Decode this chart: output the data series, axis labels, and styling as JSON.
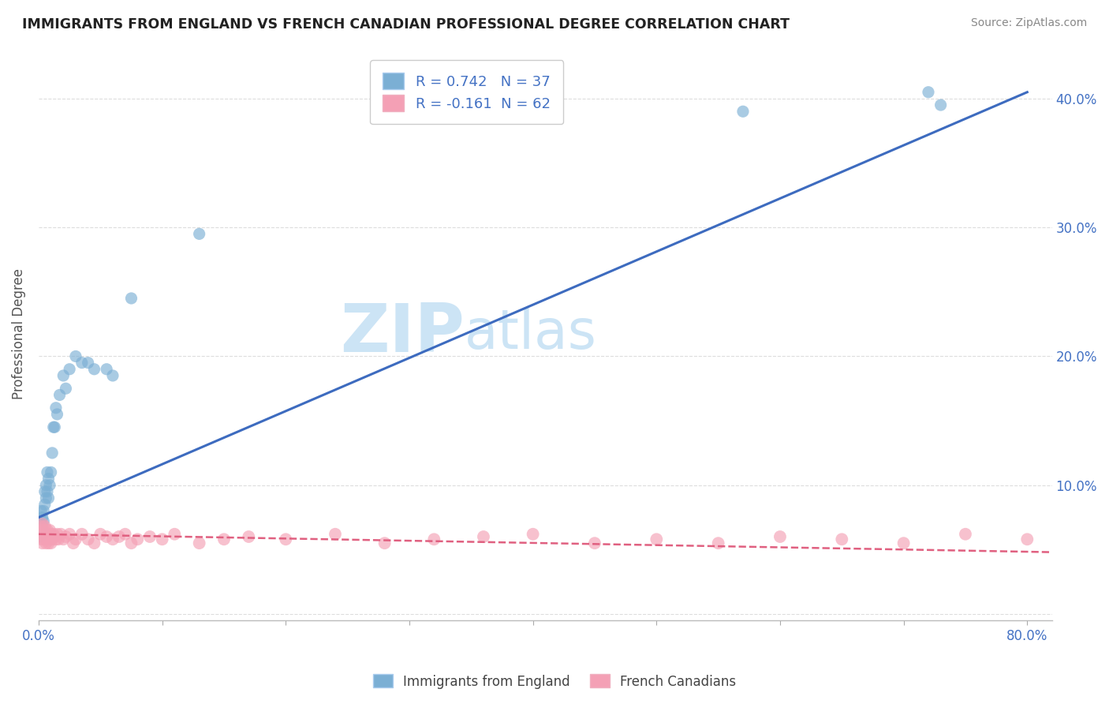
{
  "title": "IMMIGRANTS FROM ENGLAND VS FRENCH CANADIAN PROFESSIONAL DEGREE CORRELATION CHART",
  "source": "Source: ZipAtlas.com",
  "ylabel": "Professional Degree",
  "r_england": 0.742,
  "n_england": 37,
  "r_french": -0.161,
  "n_french": 62,
  "legend_label_england": "Immigrants from England",
  "legend_label_french": "French Canadians",
  "color_england": "#7bafd4",
  "color_french": "#f4a0b5",
  "color_trendline_england": "#3d6bbf",
  "color_trendline_french": "#e06080",
  "watermark_ZIP": "ZIP",
  "watermark_atlas": "atlas",
  "watermark_color": "#cce4f5",
  "england_x": [
    0.001,
    0.002,
    0.002,
    0.003,
    0.003,
    0.004,
    0.004,
    0.005,
    0.005,
    0.006,
    0.006,
    0.007,
    0.007,
    0.008,
    0.008,
    0.009,
    0.01,
    0.011,
    0.012,
    0.013,
    0.014,
    0.015,
    0.017,
    0.02,
    0.022,
    0.025,
    0.03,
    0.035,
    0.04,
    0.045,
    0.055,
    0.06,
    0.075,
    0.13,
    0.57,
    0.72,
    0.73
  ],
  "england_y": [
    0.06,
    0.07,
    0.08,
    0.065,
    0.075,
    0.072,
    0.08,
    0.085,
    0.095,
    0.09,
    0.1,
    0.095,
    0.11,
    0.09,
    0.105,
    0.1,
    0.11,
    0.125,
    0.145,
    0.145,
    0.16,
    0.155,
    0.17,
    0.185,
    0.175,
    0.19,
    0.2,
    0.195,
    0.195,
    0.19,
    0.19,
    0.185,
    0.245,
    0.295,
    0.39,
    0.405,
    0.395
  ],
  "french_x": [
    0.001,
    0.002,
    0.002,
    0.003,
    0.003,
    0.003,
    0.004,
    0.004,
    0.005,
    0.005,
    0.006,
    0.006,
    0.007,
    0.007,
    0.008,
    0.008,
    0.009,
    0.009,
    0.01,
    0.01,
    0.011,
    0.012,
    0.013,
    0.014,
    0.015,
    0.016,
    0.018,
    0.02,
    0.022,
    0.025,
    0.028,
    0.03,
    0.035,
    0.04,
    0.045,
    0.05,
    0.055,
    0.06,
    0.065,
    0.07,
    0.075,
    0.08,
    0.09,
    0.1,
    0.11,
    0.13,
    0.15,
    0.17,
    0.2,
    0.24,
    0.28,
    0.32,
    0.36,
    0.4,
    0.45,
    0.5,
    0.55,
    0.6,
    0.65,
    0.7,
    0.75,
    0.8
  ],
  "french_y": [
    0.062,
    0.058,
    0.068,
    0.055,
    0.065,
    0.07,
    0.058,
    0.065,
    0.06,
    0.068,
    0.055,
    0.062,
    0.058,
    0.065,
    0.055,
    0.06,
    0.058,
    0.065,
    0.055,
    0.062,
    0.058,
    0.062,
    0.06,
    0.058,
    0.062,
    0.058,
    0.062,
    0.058,
    0.06,
    0.062,
    0.055,
    0.058,
    0.062,
    0.058,
    0.055,
    0.062,
    0.06,
    0.058,
    0.06,
    0.062,
    0.055,
    0.058,
    0.06,
    0.058,
    0.062,
    0.055,
    0.058,
    0.06,
    0.058,
    0.062,
    0.055,
    0.058,
    0.06,
    0.062,
    0.055,
    0.058,
    0.055,
    0.06,
    0.058,
    0.055,
    0.062,
    0.058
  ],
  "xlim": [
    0.0,
    0.82
  ],
  "ylim": [
    -0.005,
    0.44
  ],
  "yticks": [
    0.0,
    0.1,
    0.2,
    0.3,
    0.4
  ],
  "ytick_labels_right": [
    "",
    "10.0%",
    "20.0%",
    "30.0%",
    "40.0%"
  ],
  "xticks": [
    0.0,
    0.1,
    0.2,
    0.3,
    0.4,
    0.5,
    0.6,
    0.7,
    0.8
  ],
  "xtick_labels": [
    "0.0%",
    "",
    "",
    "",
    "",
    "",
    "",
    "",
    "80.0%"
  ],
  "background_color": "#ffffff",
  "grid_color": "#dddddd",
  "eng_trend_x0": 0.0,
  "eng_trend_y0": 0.075,
  "eng_trend_x1": 0.8,
  "eng_trend_y1": 0.405,
  "fr_trend_x0": 0.0,
  "fr_trend_y0": 0.062,
  "fr_trend_x1": 0.82,
  "fr_trend_y1": 0.048
}
